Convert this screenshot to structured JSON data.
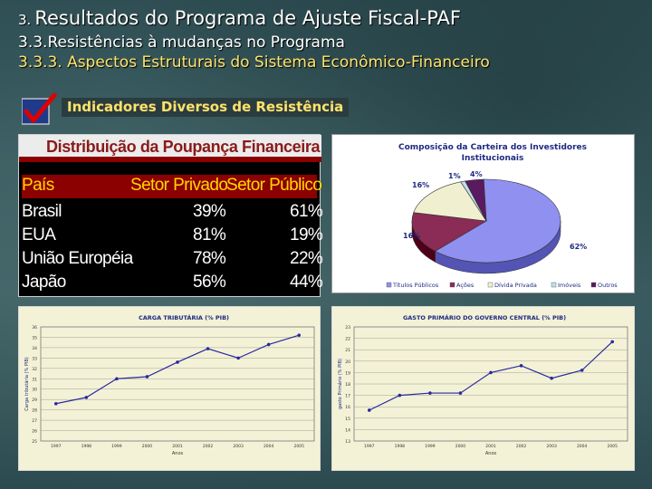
{
  "header": {
    "title_number": "3.",
    "title": "Resultados do Programa de Ajuste Fiscal-PAF",
    "subtitle": "3.3.Resistências à mudanças no Programa",
    "section": "3.3.3. Aspectos Estruturais do Sistema Econômico-Financeiro"
  },
  "indicators_label": "Indicadores Diversos de Resistência",
  "table": {
    "title": "Distribuição da Poupança Financeira",
    "headers": [
      "País",
      "Setor Privado",
      "Setor Público"
    ],
    "rows": [
      [
        "Brasil",
        "39%",
        "61%"
      ],
      [
        "EUA",
        "81%",
        "19%"
      ],
      [
        "União Européia",
        "78%",
        "22%"
      ],
      [
        "Japão",
        "56%",
        "44%"
      ]
    ]
  },
  "colors": {
    "title_yellow": "#ffe36a",
    "table_header_red": "#8b0000",
    "table_header_text": "#ffd700",
    "pie_navy": "#2c2f80",
    "pie_maroon": "#8a2c55",
    "pie_lavender": "#9090f0",
    "line_blue": "#2a2aa0"
  },
  "chart_data": [
    {
      "type": "pie",
      "title": "Composição da Carteira dos Investidores Institucionais",
      "labels": [
        "Títulos Públicos",
        "Ações",
        "Dívida Privada",
        "Imóveis",
        "Outros"
      ],
      "values": [
        62,
        16,
        16,
        1,
        4
      ],
      "value_labels": [
        "62%",
        "16%",
        "16%",
        "1%",
        "4%"
      ],
      "colors": [
        "#9090f0",
        "#8a2c55",
        "#f0f0d0",
        "#c0e0e8",
        "#5a1a60"
      ],
      "legend": "bottom"
    },
    {
      "type": "line",
      "title": "CARGA TRIBUTÁRIA (% PIB)",
      "xlabel": "Anos",
      "ylabel": "Carga tributária (% PIB)",
      "categories": [
        "1997",
        "1998",
        "1999",
        "2000",
        "2001",
        "2002",
        "2003",
        "2004",
        "2005"
      ],
      "values": [
        28.6,
        29.2,
        31.0,
        31.2,
        32.6,
        33.9,
        33.0,
        34.3,
        35.2
      ],
      "yticks": [
        "25",
        "26",
        "27",
        "28",
        "29",
        "30",
        "31",
        "32",
        "33",
        "34",
        "35",
        "36"
      ],
      "ylim": [
        25,
        36
      ]
    },
    {
      "type": "line",
      "title": "GASTO PRIMÁRIO DO GOVERNO CENTRAL (% PIB)",
      "xlabel": "Anos",
      "ylabel": "gasto Primário (% PIB)",
      "categories": [
        "1997",
        "1998",
        "1999",
        "2000",
        "2001",
        "2002",
        "2003",
        "2004",
        "2005"
      ],
      "values": [
        15.7,
        17.0,
        17.2,
        17.2,
        19.0,
        19.6,
        18.5,
        19.2,
        21.7
      ],
      "yticks": [
        "13",
        "14",
        "15",
        "16",
        "17",
        "18",
        "19",
        "20",
        "21",
        "22",
        "23"
      ],
      "ylim": [
        13,
        23
      ]
    }
  ]
}
